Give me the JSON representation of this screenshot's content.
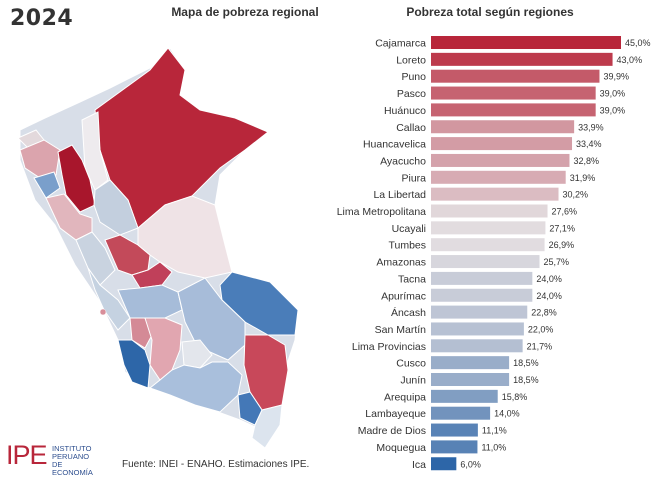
{
  "year": "2024",
  "map_title": "Mapa de pobreza regional",
  "chart_title": "Pobreza total según regiones",
  "logo": {
    "name": "IPE",
    "line1": "INSTITUTO",
    "line2": "PERUANO",
    "line3": "DE ECONOMÍA"
  },
  "source": "Fuente: INEI - ENAHO. Estimaciones IPE.",
  "colors": {
    "high": "#b8263a",
    "low": "#2d66a8",
    "neutral": "#e2dde0"
  },
  "chart_data": {
    "type": "bar",
    "orientation": "horizontal",
    "title": "Pobreza total según regiones",
    "xlabel": "",
    "ylabel": "",
    "xlim": [
      0,
      45
    ],
    "grid": false,
    "legend": "none",
    "categories": [
      "Cajamarca",
      "Loreto",
      "Puno",
      "Pasco",
      "Huánuco",
      "Callao",
      "Huancavelica",
      "Ayacucho",
      "Piura",
      "La Libertad",
      "Lima Metropolitana",
      "Ucayali",
      "Tumbes",
      "Amazonas",
      "Tacna",
      "Apurímac",
      "Áncash",
      "San Martín",
      "Lima Provincias",
      "Cusco",
      "Junín",
      "Arequipa",
      "Lambayeque",
      "Madre de Dios",
      "Moquegua",
      "Ica"
    ],
    "values": [
      45.0,
      43.0,
      39.9,
      39.0,
      39.0,
      33.9,
      33.4,
      32.8,
      31.9,
      30.2,
      27.6,
      27.1,
      26.9,
      25.7,
      24.0,
      24.0,
      22.8,
      22.0,
      21.7,
      18.5,
      18.5,
      15.8,
      14.0,
      11.1,
      11.0,
      6.0
    ],
    "labels": [
      "45,0%",
      "43,0%",
      "39,9%",
      "39,0%",
      "39,0%",
      "33,9%",
      "33,4%",
      "32,8%",
      "31,9%",
      "30,2%",
      "27,6%",
      "27,1%",
      "26,9%",
      "25,7%",
      "24,0%",
      "24,0%",
      "22,8%",
      "22,0%",
      "21,7%",
      "18,5%",
      "18,5%",
      "15,8%",
      "14,0%",
      "11,1%",
      "11,0%",
      "6,0%"
    ]
  }
}
